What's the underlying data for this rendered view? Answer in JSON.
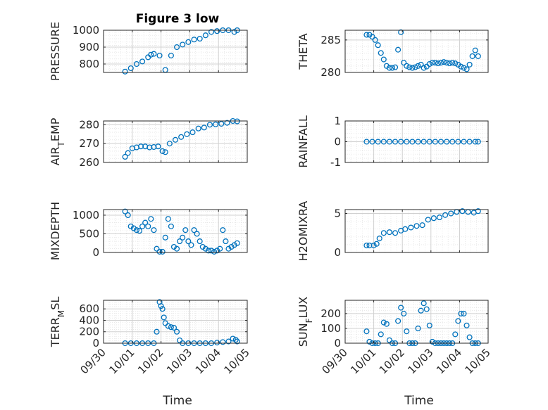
{
  "figure": {
    "title": "Figure 3 low",
    "marker_color": "#0072BD",
    "xlabel": "Time",
    "xticks": [
      "09/30",
      "10/01",
      "10/02",
      "10/03",
      "10/04",
      "10/05"
    ]
  },
  "chart_data": [
    {
      "type": "scatter",
      "ylabel": "PRESSURE",
      "xlim": [
        0,
        5
      ],
      "ylim": [
        750,
        1000
      ],
      "yticks": [
        "800",
        "900",
        "1000"
      ],
      "grid": true,
      "x": [
        0.75,
        0.95,
        1.15,
        1.35,
        1.55,
        1.65,
        1.75,
        1.95,
        2.15,
        2.35,
        2.55,
        2.75,
        2.95,
        3.15,
        3.35,
        3.55,
        3.75,
        3.95,
        4.15,
        4.35,
        4.55,
        4.65
      ],
      "y": [
        755,
        775,
        800,
        815,
        840,
        855,
        860,
        850,
        765,
        850,
        900,
        915,
        930,
        945,
        950,
        970,
        990,
        995,
        1000,
        1000,
        990,
        1000
      ]
    },
    {
      "type": "scatter",
      "ylabel": "THETA",
      "xlim": [
        0,
        5
      ],
      "ylim": [
        280,
        286.5
      ],
      "yticks": [
        "280",
        "285"
      ],
      "grid": true,
      "x": [
        0.75,
        0.85,
        0.95,
        1.05,
        1.15,
        1.25,
        1.35,
        1.45,
        1.55,
        1.65,
        1.75,
        1.85,
        1.95,
        2.05,
        2.15,
        2.25,
        2.35,
        2.45,
        2.55,
        2.65,
        2.75,
        2.85,
        2.95,
        3.05,
        3.15,
        3.25,
        3.35,
        3.45,
        3.55,
        3.65,
        3.75,
        3.85,
        3.95,
        4.05,
        4.15,
        4.25,
        4.35,
        4.45,
        4.55,
        4.65
      ],
      "y": [
        285.8,
        285.8,
        285.5,
        285,
        284.2,
        283,
        282,
        281,
        280.7,
        280.7,
        280.8,
        283.5,
        286.2,
        281.5,
        281,
        280.8,
        280.7,
        280.8,
        281,
        281.2,
        280.7,
        280.9,
        281.3,
        281.5,
        281.5,
        281.4,
        281.5,
        281.6,
        281.5,
        281.4,
        281.5,
        281.4,
        281.2,
        280.9,
        280.7,
        280.5,
        281.2,
        282.5,
        283.4,
        282.5
      ]
    },
    {
      "type": "scatter",
      "ylabel": "AIR_TEMP",
      "xlim": [
        0,
        5
      ],
      "ylim": [
        260,
        282
      ],
      "yticks": [
        "260",
        "270",
        "280"
      ],
      "grid": true,
      "x": [
        0.75,
        0.85,
        1.0,
        1.15,
        1.3,
        1.45,
        1.6,
        1.75,
        1.9,
        2.05,
        2.15,
        2.3,
        2.5,
        2.7,
        2.9,
        3.1,
        3.3,
        3.5,
        3.7,
        3.9,
        4.1,
        4.3,
        4.5,
        4.65
      ],
      "y": [
        263,
        265,
        267.5,
        268,
        268.5,
        268.5,
        268,
        268.2,
        268.5,
        266,
        265.5,
        270,
        272,
        273.5,
        275,
        276,
        278,
        278.5,
        280,
        280.2,
        280.5,
        281,
        282,
        281.8
      ]
    },
    {
      "type": "scatter",
      "ylabel": "RAINFALL",
      "xlim": [
        0,
        5
      ],
      "ylim": [
        -1,
        1
      ],
      "yticks": [
        "-1",
        "0",
        "1"
      ],
      "grid": true,
      "x": [
        0.75,
        0.95,
        1.15,
        1.35,
        1.55,
        1.75,
        1.95,
        2.15,
        2.35,
        2.55,
        2.75,
        2.95,
        3.15,
        3.35,
        3.55,
        3.75,
        3.95,
        4.15,
        4.35,
        4.55,
        4.65
      ],
      "y": [
        0,
        0,
        0,
        0,
        0,
        0,
        0,
        0,
        0,
        0,
        0,
        0,
        0,
        0,
        0,
        0,
        0,
        0,
        0,
        0,
        0
      ]
    },
    {
      "type": "scatter",
      "ylabel": "MIXDEPTH",
      "xlim": [
        0,
        5
      ],
      "ylim": [
        0,
        1150
      ],
      "yticks": [
        "0",
        "500",
        "1000"
      ],
      "grid": true,
      "x": [
        0.75,
        0.85,
        0.95,
        1.05,
        1.15,
        1.25,
        1.35,
        1.45,
        1.55,
        1.65,
        1.75,
        1.85,
        1.95,
        2.05,
        2.15,
        2.25,
        2.35,
        2.45,
        2.55,
        2.65,
        2.75,
        2.85,
        2.95,
        3.05,
        3.15,
        3.25,
        3.35,
        3.45,
        3.55,
        3.65,
        3.75,
        3.85,
        3.95,
        4.05,
        4.15,
        4.25,
        4.35,
        4.45,
        4.55,
        4.65
      ],
      "y": [
        1100,
        1000,
        700,
        650,
        600,
        580,
        700,
        800,
        700,
        900,
        600,
        100,
        20,
        20,
        400,
        900,
        700,
        150,
        100,
        300,
        400,
        600,
        300,
        200,
        600,
        500,
        300,
        150,
        100,
        50,
        50,
        20,
        50,
        100,
        600,
        300,
        100,
        150,
        200,
        250
      ]
    },
    {
      "type": "scatter",
      "ylabel": "H2OMIXRA",
      "xlim": [
        0,
        5
      ],
      "ylim": [
        0,
        5.5
      ],
      "yticks": [
        "0",
        "5"
      ],
      "grid": true,
      "x": [
        0.75,
        0.85,
        1.0,
        1.1,
        1.2,
        1.35,
        1.55,
        1.75,
        1.95,
        2.1,
        2.3,
        2.5,
        2.7,
        2.9,
        3.1,
        3.3,
        3.5,
        3.7,
        3.9,
        4.1,
        4.3,
        4.5,
        4.65
      ],
      "y": [
        0.9,
        0.9,
        0.9,
        1.1,
        1.8,
        2.5,
        2.6,
        2.5,
        2.8,
        3.0,
        3.2,
        3.4,
        3.5,
        4.2,
        4.4,
        4.5,
        4.8,
        5.0,
        5.2,
        5.3,
        5.2,
        5.1,
        5.3
      ]
    },
    {
      "type": "scatter",
      "ylabel": "TERR_MSL",
      "xlim": [
        0,
        5
      ],
      "ylim": [
        0,
        750
      ],
      "yticks": [
        "0",
        "200",
        "400",
        "600"
      ],
      "grid": true,
      "x": [
        0.75,
        0.95,
        1.15,
        1.35,
        1.55,
        1.75,
        1.85,
        1.95,
        2.0,
        2.05,
        2.1,
        2.15,
        2.25,
        2.35,
        2.45,
        2.55,
        2.65,
        2.75,
        2.95,
        3.15,
        3.35,
        3.55,
        3.75,
        3.95,
        4.15,
        4.35,
        4.5,
        4.6,
        4.65
      ],
      "y": [
        0,
        0,
        0,
        0,
        0,
        0,
        200,
        720,
        650,
        600,
        450,
        350,
        300,
        280,
        270,
        200,
        50,
        0,
        0,
        0,
        0,
        0,
        0,
        10,
        20,
        30,
        80,
        60,
        30
      ]
    },
    {
      "type": "scatter",
      "ylabel": "SUN_FLUX",
      "xlim": [
        0,
        5
      ],
      "ylim": [
        0,
        290
      ],
      "yticks": [
        "0",
        "100",
        "200"
      ],
      "grid": true,
      "x": [
        0.75,
        0.85,
        0.95,
        1.05,
        1.15,
        1.25,
        1.35,
        1.45,
        1.55,
        1.65,
        1.75,
        1.85,
        1.95,
        2.05,
        2.15,
        2.25,
        2.35,
        2.45,
        2.55,
        2.65,
        2.75,
        2.85,
        2.95,
        3.05,
        3.15,
        3.25,
        3.35,
        3.45,
        3.55,
        3.65,
        3.75,
        3.85,
        3.95,
        4.05,
        4.15,
        4.25,
        4.35,
        4.45,
        4.55,
        4.65
      ],
      "y": [
        80,
        10,
        0,
        0,
        0,
        60,
        140,
        130,
        20,
        0,
        0,
        150,
        240,
        200,
        80,
        0,
        0,
        0,
        100,
        220,
        270,
        230,
        120,
        10,
        0,
        0,
        0,
        0,
        0,
        0,
        0,
        60,
        150,
        200,
        200,
        120,
        40,
        0,
        0,
        0
      ]
    }
  ]
}
